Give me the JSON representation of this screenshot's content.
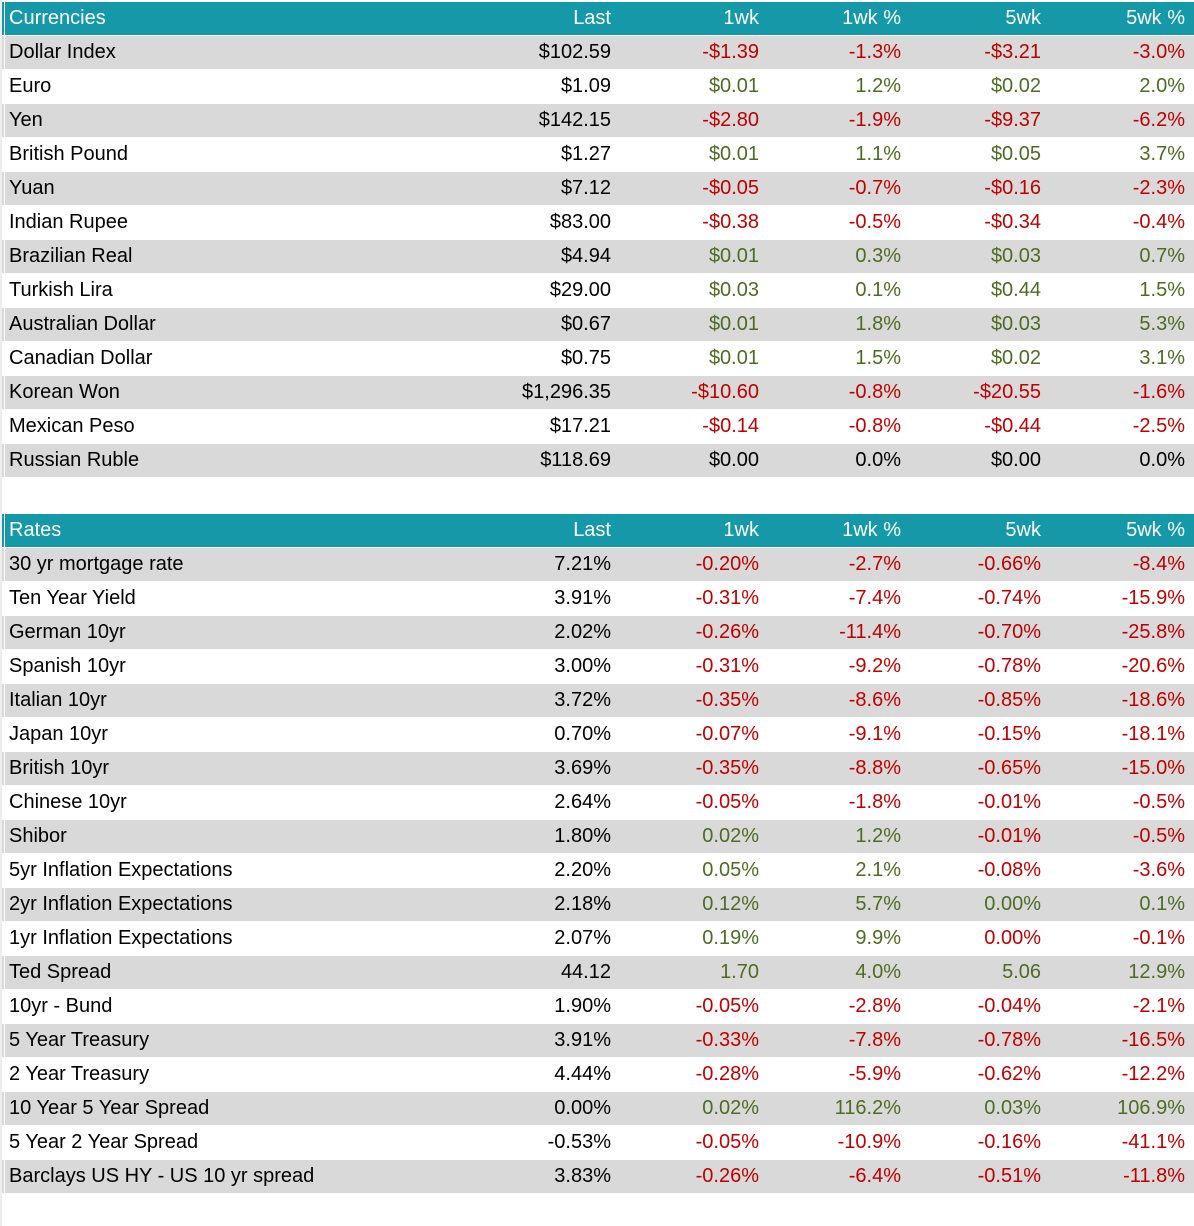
{
  "colors": {
    "header_bg": "#1599a8",
    "header_text": "#ffffff",
    "row_stripe": "#d9d9d9",
    "row_plain": "#ffffff",
    "positive_text": "#4e6b24",
    "negative_text": "#c00000",
    "neutral_text": "#000000"
  },
  "chart_data": [
    {
      "type": "table",
      "title": "Currencies",
      "columns": [
        "Last",
        "1wk",
        "1wk %",
        "5wk",
        "5wk %"
      ],
      "rows": [
        {
          "label": "Dollar Index",
          "values": [
            "$102.59",
            "-$1.39",
            "-1.3%",
            "-$3.21",
            "-3.0%"
          ],
          "tones": [
            "neg",
            "neg",
            "neg",
            "neg"
          ]
        },
        {
          "label": "Euro",
          "values": [
            "$1.09",
            "$0.01",
            "1.2%",
            "$0.02",
            "2.0%"
          ],
          "tones": [
            "pos",
            "pos",
            "pos",
            "pos"
          ]
        },
        {
          "label": "Yen",
          "values": [
            "$142.15",
            "-$2.80",
            "-1.9%",
            "-$9.37",
            "-6.2%"
          ],
          "tones": [
            "neg",
            "neg",
            "neg",
            "neg"
          ]
        },
        {
          "label": "British Pound",
          "values": [
            "$1.27",
            "$0.01",
            "1.1%",
            "$0.05",
            "3.7%"
          ],
          "tones": [
            "pos",
            "pos",
            "pos",
            "pos"
          ]
        },
        {
          "label": "Yuan",
          "values": [
            "$7.12",
            "-$0.05",
            "-0.7%",
            "-$0.16",
            "-2.3%"
          ],
          "tones": [
            "neg",
            "neg",
            "neg",
            "neg"
          ]
        },
        {
          "label": "Indian Rupee",
          "values": [
            "$83.00",
            "-$0.38",
            "-0.5%",
            "-$0.34",
            "-0.4%"
          ],
          "tones": [
            "neg",
            "neg",
            "neg",
            "neg"
          ]
        },
        {
          "label": "Brazilian Real",
          "values": [
            "$4.94",
            "$0.01",
            "0.3%",
            "$0.03",
            "0.7%"
          ],
          "tones": [
            "pos",
            "pos",
            "pos",
            "pos"
          ]
        },
        {
          "label": "Turkish Lira",
          "values": [
            "$29.00",
            "$0.03",
            "0.1%",
            "$0.44",
            "1.5%"
          ],
          "tones": [
            "pos",
            "pos",
            "pos",
            "pos"
          ]
        },
        {
          "label": "Australian Dollar",
          "values": [
            "$0.67",
            "$0.01",
            "1.8%",
            "$0.03",
            "5.3%"
          ],
          "tones": [
            "pos",
            "pos",
            "pos",
            "pos"
          ]
        },
        {
          "label": "Canadian Dollar",
          "values": [
            "$0.75",
            "$0.01",
            "1.5%",
            "$0.02",
            "3.1%"
          ],
          "tones": [
            "pos",
            "pos",
            "pos",
            "pos"
          ]
        },
        {
          "label": "Korean Won",
          "values": [
            "$1,296.35",
            "-$10.60",
            "-0.8%",
            "-$20.55",
            "-1.6%"
          ],
          "tones": [
            "neg",
            "neg",
            "neg",
            "neg"
          ]
        },
        {
          "label": "Mexican Peso",
          "values": [
            "$17.21",
            "-$0.14",
            "-0.8%",
            "-$0.44",
            "-2.5%"
          ],
          "tones": [
            "neg",
            "neg",
            "neg",
            "neg"
          ]
        },
        {
          "label": "Russian Ruble",
          "values": [
            "$118.69",
            "$0.00",
            "0.0%",
            "$0.00",
            "0.0%"
          ],
          "tones": [
            "neu",
            "neu",
            "neu",
            "neu"
          ]
        }
      ]
    },
    {
      "type": "table",
      "title": "Rates",
      "columns": [
        "Last",
        "1wk",
        "1wk %",
        "5wk",
        "5wk %"
      ],
      "rows": [
        {
          "label": "30 yr mortgage rate",
          "values": [
            "7.21%",
            "-0.20%",
            "-2.7%",
            "-0.66%",
            "-8.4%"
          ],
          "tones": [
            "neg",
            "neg",
            "neg",
            "neg"
          ]
        },
        {
          "label": "Ten Year Yield",
          "values": [
            "3.91%",
            "-0.31%",
            "-7.4%",
            "-0.74%",
            "-15.9%"
          ],
          "tones": [
            "neg",
            "neg",
            "neg",
            "neg"
          ]
        },
        {
          "label": "German 10yr",
          "values": [
            "2.02%",
            "-0.26%",
            "-11.4%",
            "-0.70%",
            "-25.8%"
          ],
          "tones": [
            "neg",
            "neg",
            "neg",
            "neg"
          ]
        },
        {
          "label": "Spanish 10yr",
          "values": [
            "3.00%",
            "-0.31%",
            "-9.2%",
            "-0.78%",
            "-20.6%"
          ],
          "tones": [
            "neg",
            "neg",
            "neg",
            "neg"
          ]
        },
        {
          "label": "Italian 10yr",
          "values": [
            "3.72%",
            "-0.35%",
            "-8.6%",
            "-0.85%",
            "-18.6%"
          ],
          "tones": [
            "neg",
            "neg",
            "neg",
            "neg"
          ]
        },
        {
          "label": "Japan 10yr",
          "values": [
            "0.70%",
            "-0.07%",
            "-9.1%",
            "-0.15%",
            "-18.1%"
          ],
          "tones": [
            "neg",
            "neg",
            "neg",
            "neg"
          ]
        },
        {
          "label": "British 10yr",
          "values": [
            "3.69%",
            "-0.35%",
            "-8.8%",
            "-0.65%",
            "-15.0%"
          ],
          "tones": [
            "neg",
            "neg",
            "neg",
            "neg"
          ]
        },
        {
          "label": "Chinese 10yr",
          "values": [
            "2.64%",
            "-0.05%",
            "-1.8%",
            "-0.01%",
            "-0.5%"
          ],
          "tones": [
            "neg",
            "neg",
            "neg",
            "neg"
          ]
        },
        {
          "label": "Shibor",
          "values": [
            "1.80%",
            "0.02%",
            "1.2%",
            "-0.01%",
            "-0.5%"
          ],
          "tones": [
            "pos",
            "pos",
            "neg",
            "neg"
          ]
        },
        {
          "label": "5yr Inflation Expectations",
          "values": [
            "2.20%",
            "0.05%",
            "2.1%",
            "-0.08%",
            "-3.6%"
          ],
          "tones": [
            "pos",
            "pos",
            "neg",
            "neg"
          ]
        },
        {
          "label": "2yr Inflation Expectations",
          "values": [
            "2.18%",
            "0.12%",
            "5.7%",
            "0.00%",
            "0.1%"
          ],
          "tones": [
            "pos",
            "pos",
            "pos",
            "pos"
          ]
        },
        {
          "label": "1yr Inflation Expectations",
          "values": [
            "2.07%",
            "0.19%",
            "9.9%",
            "0.00%",
            "-0.1%"
          ],
          "tones": [
            "pos",
            "pos",
            "neg",
            "neg"
          ]
        },
        {
          "label": "Ted Spread",
          "values": [
            "44.12",
            "1.70",
            "4.0%",
            "5.06",
            "12.9%"
          ],
          "tones": [
            "pos",
            "pos",
            "pos",
            "pos"
          ]
        },
        {
          "label": "10yr - Bund",
          "values": [
            "1.90%",
            "-0.05%",
            "-2.8%",
            "-0.04%",
            "-2.1%"
          ],
          "tones": [
            "neg",
            "neg",
            "neg",
            "neg"
          ]
        },
        {
          "label": "5 Year Treasury",
          "values": [
            "3.91%",
            "-0.33%",
            "-7.8%",
            "-0.78%",
            "-16.5%"
          ],
          "tones": [
            "neg",
            "neg",
            "neg",
            "neg"
          ]
        },
        {
          "label": "2 Year Treasury",
          "values": [
            "4.44%",
            "-0.28%",
            "-5.9%",
            "-0.62%",
            "-12.2%"
          ],
          "tones": [
            "neg",
            "neg",
            "neg",
            "neg"
          ]
        },
        {
          "label": "10 Year 5 Year Spread",
          "values": [
            "0.00%",
            "0.02%",
            "116.2%",
            "0.03%",
            "106.9%"
          ],
          "tones": [
            "pos",
            "pos",
            "pos",
            "pos"
          ]
        },
        {
          "label": "5 Year 2 Year Spread",
          "values": [
            "-0.53%",
            "-0.05%",
            "-10.9%",
            "-0.16%",
            "-41.1%"
          ],
          "tones": [
            "neg",
            "neg",
            "neg",
            "neg"
          ]
        },
        {
          "label": "Barclays US HY - US 10 yr spread",
          "values": [
            "3.83%",
            "-0.26%",
            "-6.4%",
            "-0.51%",
            "-11.8%"
          ],
          "tones": [
            "neg",
            "neg",
            "neg",
            "neg"
          ]
        }
      ]
    }
  ]
}
